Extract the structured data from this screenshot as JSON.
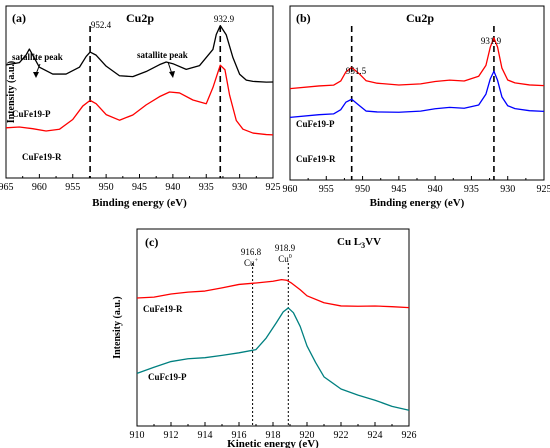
{
  "colors": {
    "black": "#000000",
    "red": "#ff0000",
    "blue": "#0000ff",
    "teal": "#008080"
  },
  "chart_data": [
    {
      "panel_label": "(a)",
      "type": "line",
      "title": "Cu2p",
      "xlabel": "Binding energy (eV)",
      "ylabel": "Intensity (a.u.)",
      "xlim": [
        965,
        925
      ],
      "x_ticks": [
        "965",
        "960",
        "955",
        "950",
        "945",
        "940",
        "935",
        "930",
        "925"
      ],
      "reference_lines": [
        {
          "x": 952.4,
          "label": "952.4"
        },
        {
          "x": 932.9,
          "label": "932.9"
        }
      ],
      "annotations": [
        "satallite peak",
        "satallite peak"
      ],
      "series": [
        {
          "name": "CuFe19-P",
          "color": "#000000",
          "x": [
            965,
            963,
            962,
            961.5,
            961,
            960,
            958,
            956,
            954,
            953,
            952.4,
            951.5,
            950,
            948,
            946,
            944,
            942,
            941,
            940,
            938,
            936,
            934,
            933.5,
            932.9,
            932,
            931,
            930,
            929,
            928,
            926,
            925
          ],
          "y": [
            0.7,
            0.71,
            0.76,
            0.8,
            0.76,
            0.68,
            0.64,
            0.64,
            0.68,
            0.75,
            0.78,
            0.76,
            0.69,
            0.63,
            0.62,
            0.65,
            0.7,
            0.72,
            0.71,
            0.67,
            0.69,
            0.8,
            0.9,
            0.96,
            0.9,
            0.75,
            0.64,
            0.6,
            0.59,
            0.58,
            0.58
          ]
        },
        {
          "name": "CuFe19-R",
          "color": "#ff0000",
          "x": [
            965,
            963,
            961,
            959,
            957,
            955,
            953.5,
            952.4,
            951.5,
            950,
            948,
            946,
            944,
            942,
            940.5,
            939,
            937,
            935,
            934,
            933.2,
            932.9,
            932.2,
            931.5,
            930.5,
            929.5,
            928,
            926,
            925
          ],
          "y": [
            0.28,
            0.28,
            0.27,
            0.26,
            0.27,
            0.33,
            0.42,
            0.46,
            0.44,
            0.37,
            0.33,
            0.36,
            0.43,
            0.49,
            0.52,
            0.51,
            0.46,
            0.44,
            0.55,
            0.66,
            0.7,
            0.67,
            0.5,
            0.33,
            0.27,
            0.24,
            0.23,
            0.23
          ]
        }
      ]
    },
    {
      "panel_label": "(b)",
      "type": "line",
      "title": "Cu2p",
      "xlabel": "Binding energy (eV)",
      "ylabel": "",
      "xlim": [
        960,
        925
      ],
      "x_ticks": [
        "960",
        "955",
        "950",
        "945",
        "940",
        "935",
        "930",
        "925"
      ],
      "reference_lines": [
        {
          "x": 951.5,
          "label": "951.5"
        },
        {
          "x": 931.9,
          "label": "931.9"
        }
      ],
      "series": [
        {
          "name": "CuFe19-P",
          "color": "#ff0000",
          "x": [
            960,
            956,
            954,
            953,
            952.3,
            951.5,
            950.5,
            949.5,
            948,
            945,
            942,
            940,
            938,
            936,
            934,
            933,
            932.4,
            931.9,
            931.4,
            930.8,
            930,
            929,
            927,
            925
          ],
          "y": [
            0.55,
            0.56,
            0.57,
            0.6,
            0.66,
            0.69,
            0.65,
            0.6,
            0.58,
            0.57,
            0.58,
            0.59,
            0.6,
            0.6,
            0.63,
            0.7,
            0.82,
            0.88,
            0.82,
            0.68,
            0.6,
            0.58,
            0.57,
            0.57
          ]
        },
        {
          "name": "CuFe19-R",
          "color": "#0000ff",
          "x": [
            960,
            956,
            954,
            953,
            952.3,
            951.5,
            950.5,
            949.5,
            948,
            945,
            942,
            940,
            938,
            936,
            934,
            933,
            932.4,
            931.9,
            931.4,
            930.8,
            930,
            929,
            927,
            925
          ],
          "y": [
            0.36,
            0.37,
            0.38,
            0.41,
            0.46,
            0.48,
            0.44,
            0.4,
            0.39,
            0.39,
            0.4,
            0.41,
            0.42,
            0.42,
            0.44,
            0.51,
            0.61,
            0.66,
            0.6,
            0.49,
            0.43,
            0.41,
            0.4,
            0.4
          ]
        }
      ]
    },
    {
      "panel_label": "(c)",
      "type": "line",
      "title": "Cu L3VV",
      "title_main": "Cu L",
      "title_sub": "3",
      "title_tail": "VV",
      "xlabel": "Kinetic energy (eV)",
      "ylabel": "Intensity (a.u.)",
      "xlim": [
        910,
        926
      ],
      "x_ticks": [
        "910",
        "912",
        "914",
        "916",
        "918",
        "920",
        "922",
        "924",
        "926"
      ],
      "reference_lines": [
        {
          "x": 916.8,
          "label": "916.8",
          "species": "Cu",
          "sup": "+"
        },
        {
          "x": 918.9,
          "label": "918.9",
          "species": "Cu",
          "sup": "0"
        }
      ],
      "series": [
        {
          "name": "CuFe19-R",
          "color": "#ff0000",
          "x": [
            910,
            911,
            912,
            913,
            914,
            915,
            916,
            917,
            918,
            918.5,
            918.8,
            919.1,
            919.6,
            920,
            921,
            922,
            923,
            924,
            925,
            926
          ],
          "y": [
            0.7,
            0.7,
            0.715,
            0.73,
            0.74,
            0.755,
            0.77,
            0.78,
            0.795,
            0.805,
            0.8,
            0.78,
            0.74,
            0.705,
            0.67,
            0.655,
            0.65,
            0.647,
            0.645,
            0.645
          ]
        },
        {
          "name": "CuFc19-P",
          "color": "#008080",
          "x": [
            910,
            911,
            912,
            913,
            914,
            915,
            916,
            917,
            917.6,
            918.2,
            918.6,
            918.9,
            919.2,
            919.6,
            920,
            920.5,
            921,
            922,
            923,
            924,
            925,
            926
          ],
          "y": [
            0.27,
            0.3,
            0.33,
            0.35,
            0.36,
            0.37,
            0.38,
            0.4,
            0.47,
            0.56,
            0.62,
            0.64,
            0.61,
            0.53,
            0.42,
            0.33,
            0.25,
            0.18,
            0.14,
            0.11,
            0.08,
            0.06
          ]
        }
      ]
    }
  ]
}
